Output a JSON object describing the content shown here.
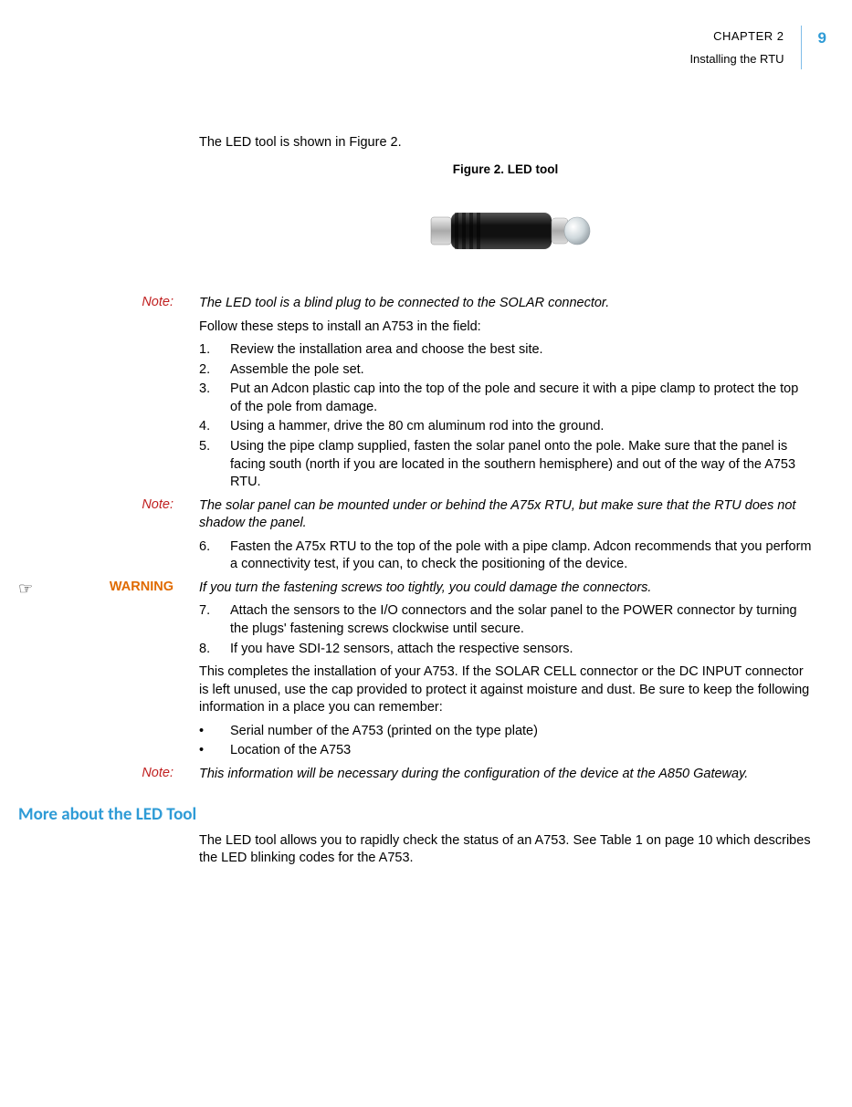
{
  "header": {
    "chapter_line": "CHAPTER 2",
    "chapter_title": "Installing the RTU",
    "page_number": "9"
  },
  "colors": {
    "accent": "#2e9bd6",
    "note_label": "#c02020",
    "warning_label": "#e06a00",
    "rule": "#7fbde8",
    "text": "#000000",
    "background": "#ffffff"
  },
  "intro": "The LED tool is shown in Figure 2.",
  "figure": {
    "caption": "Figure 2.  LED tool",
    "alt": "LED tool — a blind plug connector"
  },
  "note1": {
    "label": "Note:",
    "text": "The LED tool is a blind plug to be connected to the SOLAR connector."
  },
  "follow_text": "Follow these steps to install an A753 in the field:",
  "steps_a": [
    "Review the installation area and choose the best site.",
    "Assemble the pole set.",
    "Put an Adcon plastic cap into the top of the pole and secure it with a pipe clamp to protect the top of the pole from damage.",
    "Using a hammer, drive the 80 cm aluminum rod into the ground.",
    "Using the pipe clamp supplied, fasten the solar panel onto the pole. Make sure that the panel is facing south (north if you are located in the southern hemisphere) and out of the way of the A753 RTU."
  ],
  "note2": {
    "label": "Note:",
    "text": "The solar panel can be mounted under or behind the A75x RTU, but make sure that the RTU does not shadow the panel."
  },
  "steps_b": [
    "Fasten the A75x RTU to the top of the pole with a pipe clamp. Adcon recommends that you perform a connectivity test, if you can, to check the positioning of the device."
  ],
  "steps_b_start": 6,
  "warning": {
    "icon": "☞",
    "label": "WARNING",
    "text": "If you turn the fastening screws too tightly, you could damage the connectors."
  },
  "steps_c": [
    "Attach the sensors to the I/O connectors and the solar panel to the POWER connector by turning the plugs' fastening screws clockwise until secure.",
    "If you have SDI-12 sensors, attach the respective sensors."
  ],
  "steps_c_start": 7,
  "completion": "This completes the installation of your A753. If the SOLAR CELL connector or the DC INPUT connector is left unused, use the cap provided to protect it against moisture and dust. Be sure to keep the following information in a place you can remember:",
  "bullets": [
    "Serial number of the A753 (printed on the type plate)",
    "Location of the A753"
  ],
  "note3": {
    "label": "Note:",
    "text": "This information will be necessary during the configuration of the device at the A850 Gateway."
  },
  "section_heading": "More about the LED Tool",
  "section_body": "The LED tool allows you to rapidly check the status of an A753. See Table 1 on page 10 which describes the LED blinking codes for the A753."
}
